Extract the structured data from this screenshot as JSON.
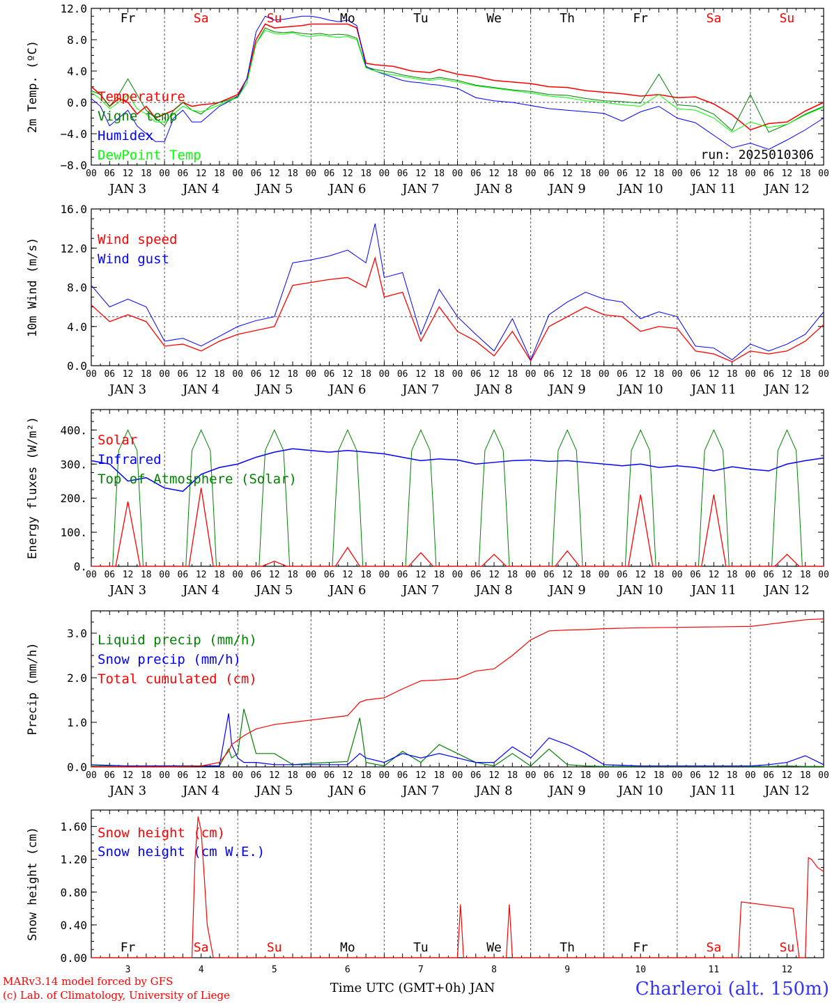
{
  "x_ticks": [
    "00",
    "06",
    "12",
    "18",
    "00",
    "06",
    "12",
    "18",
    "00",
    "06",
    "12",
    "18",
    "00",
    "06",
    "12",
    "18",
    "00",
    "06",
    "12",
    "18",
    "00",
    "06",
    "12",
    "18",
    "00",
    "06",
    "12",
    "18",
    "00",
    "06",
    "12",
    "18",
    "00",
    "06",
    "12",
    "18",
    "00",
    "06",
    "12",
    "18",
    "00"
  ],
  "date_labels": [
    "JAN  3",
    "JAN  4",
    "JAN  5",
    "JAN  6",
    "JAN  7",
    "JAN  8",
    "JAN  9",
    "JAN 10",
    "JAN 11",
    "JAN 12"
  ],
  "day_labels": [
    {
      "text": "Fr",
      "color": "#000000"
    },
    {
      "text": "Sa",
      "color": "#ff0000"
    },
    {
      "text": "Su",
      "color": "#ff0000"
    },
    {
      "text": "Mo",
      "color": "#000000"
    },
    {
      "text": "Tu",
      "color": "#000000"
    },
    {
      "text": "We",
      "color": "#000000"
    },
    {
      "text": "Th",
      "color": "#000000"
    },
    {
      "text": "Fr",
      "color": "#000000"
    },
    {
      "text": "Sa",
      "color": "#ff0000"
    },
    {
      "text": "Su",
      "color": "#ff0000"
    }
  ],
  "bottom_day_numbers": [
    "3",
    "4",
    "5",
    "6",
    "7",
    "8",
    "9",
    "10",
    "11",
    "12"
  ],
  "footer": {
    "model": "MARv3.14 model forced by GFS",
    "credit": "(c) Lab. of Climatology, University of Liege",
    "xlabel": "Time UTC (GMT+0h) JAN",
    "station": "Charleroi (alt. 150m)"
  },
  "chart_data": [
    {
      "type": "line",
      "ylabel": "2m Temp. (ºC)",
      "ylim": [
        -8,
        12
      ],
      "yticks": [
        "−8.0",
        "−4.0",
        "0.0",
        "4.0",
        "8.0",
        "12.0"
      ],
      "ytick_values": [
        -8,
        -4,
        0,
        4,
        8,
        12
      ],
      "ref_line": 0,
      "annotation": "run: 2025010306",
      "x_hours": [
        0,
        3,
        6,
        9,
        12,
        15,
        18,
        21,
        24,
        27,
        30,
        33,
        36,
        39,
        42,
        45,
        48,
        51,
        54,
        57,
        60,
        63,
        66,
        69,
        72,
        75,
        78,
        81,
        84,
        87,
        90,
        93,
        96,
        99,
        102,
        105,
        108,
        111,
        114,
        117,
        120,
        126,
        132,
        138,
        144,
        150,
        156,
        162,
        168,
        174,
        180,
        186,
        192,
        198,
        204,
        210,
        216,
        222,
        228,
        234,
        240
      ],
      "series": [
        {
          "name": "Temperature",
          "color": "#ff0000",
          "width": 1.6,
          "y": [
            2,
            1,
            -0.5,
            0.5,
            0,
            -1.5,
            -0.5,
            -2,
            -1.5,
            -1,
            0,
            -0.5,
            -0.3,
            -0.2,
            0,
            0.5,
            1,
            3,
            8,
            10,
            9.5,
            9.6,
            9.7,
            9.8,
            10,
            10,
            10,
            10,
            10,
            9.5,
            5,
            4.8,
            4.7,
            4.6,
            4.3,
            4,
            3.9,
            3.8,
            4.2,
            3.9,
            3.6,
            3.3,
            2.8,
            2.6,
            2.4,
            2,
            1.9,
            1.5,
            1.3,
            1.1,
            0.8,
            1,
            0.6,
            0.7,
            -0.2,
            -1.6,
            -3.5,
            -2.7,
            -2.5,
            -1.1,
            0
          ]
        },
        {
          "name": "Vigne temp",
          "color": "#008000",
          "width": 1.0,
          "y": [
            1.5,
            1,
            -0.5,
            1,
            3,
            1,
            -1,
            -2,
            -3,
            -1,
            0,
            -1,
            -1.5,
            -0.5,
            0,
            0.3,
            0.8,
            2.5,
            7.5,
            9.5,
            9,
            8.9,
            9,
            8.8,
            8.7,
            8.8,
            8.6,
            8.7,
            8.6,
            8.2,
            4.5,
            4.2,
            4,
            3.8,
            3.5,
            3.3,
            3.1,
            3,
            3.2,
            3,
            2.8,
            2.2,
            1.9,
            1.6,
            1.4,
            1,
            0.9,
            0.5,
            0.2,
            0.1,
            -0.1,
            3.6,
            -0.3,
            -0.5,
            -1.5,
            -3.6,
            1,
            -3.8,
            -2.8,
            -1.5,
            -0.5
          ]
        },
        {
          "name": "Humidex",
          "color": "#0000ff",
          "width": 1.0,
          "y": [
            0.5,
            -0.5,
            -3,
            -2,
            -1,
            -3,
            -4,
            -5,
            -5,
            -2,
            -1,
            -2.5,
            -2.5,
            -1.5,
            -0.5,
            0.1,
            0.7,
            3,
            9,
            11,
            10.5,
            10.6,
            10.8,
            11,
            11,
            10.8,
            10.5,
            10.3,
            10.5,
            9.8,
            4.6,
            4,
            3.6,
            3.2,
            2.8,
            2.6,
            2.5,
            2.3,
            2.2,
            2,
            1.8,
            0.6,
            0.2,
            0,
            -0.4,
            -0.8,
            -1,
            -1.2,
            -1.4,
            -2.4,
            -1.2,
            -0.5,
            -2,
            -2.6,
            -4.2,
            -5.8,
            -5.2,
            -6,
            -4.8,
            -3.5,
            -2
          ]
        },
        {
          "name": "DewPoint Temp",
          "color": "#00ff00",
          "width": 1.0,
          "y": [
            1.3,
            0.4,
            -0.8,
            0,
            1,
            -0.8,
            -1.5,
            -2.5,
            -2.5,
            -1.5,
            -0.5,
            -1,
            -1.2,
            -0.8,
            -0.3,
            0.2,
            0.6,
            2.5,
            7.5,
            9.2,
            8.8,
            8.7,
            8.9,
            8.5,
            8.4,
            8.6,
            8.4,
            8.3,
            8.4,
            8,
            4.4,
            4,
            3.7,
            3.5,
            3.3,
            3.1,
            2.9,
            2.8,
            3,
            2.8,
            2.6,
            2.1,
            1.8,
            1.5,
            1.2,
            0.8,
            0.6,
            0.2,
            0,
            -0.3,
            -0.5,
            1,
            -0.8,
            -1,
            -2,
            -3.8,
            -2.5,
            -3.2,
            -2.8,
            -1.6,
            -0.6
          ]
        }
      ]
    },
    {
      "type": "line",
      "ylabel": "10m Wind (m/s)",
      "ylim": [
        0,
        16
      ],
      "yticks": [
        "0.0",
        "4.0",
        "8.0",
        "12.0",
        "16.0"
      ],
      "ytick_values": [
        0,
        4,
        8,
        12,
        16
      ],
      "ref_line": 5,
      "x_hours": [
        0,
        6,
        12,
        18,
        24,
        30,
        36,
        42,
        48,
        54,
        60,
        66,
        72,
        78,
        84,
        90,
        93,
        96,
        102,
        108,
        114,
        120,
        126,
        132,
        138,
        144,
        150,
        156,
        162,
        168,
        174,
        180,
        186,
        192,
        198,
        204,
        210,
        216,
        222,
        228,
        234,
        240
      ],
      "series": [
        {
          "name": "Wind speed",
          "color": "#ff0000",
          "width": 1.3,
          "y": [
            6.2,
            4.5,
            5.2,
            4.5,
            2,
            2.2,
            1.5,
            2.5,
            3.2,
            3.6,
            4,
            8.2,
            8.5,
            8.8,
            9,
            8,
            11,
            7,
            7.5,
            2.5,
            6,
            3.5,
            2.5,
            1,
            3.5,
            0.5,
            4,
            5,
            6,
            5.2,
            5,
            3.5,
            4,
            3.8,
            1.5,
            1.2,
            0.4,
            1.5,
            1.2,
            1.5,
            2.5,
            4.2
          ]
        },
        {
          "name": "Wind gust",
          "color": "#0000ff",
          "width": 1.0,
          "y": [
            8.2,
            6,
            6.8,
            6,
            2.5,
            2.8,
            2,
            3,
            4,
            4.6,
            5,
            10.5,
            10.8,
            11.2,
            11.8,
            10.5,
            14.5,
            9,
            9.5,
            3.2,
            7.8,
            5,
            3.2,
            1.5,
            4.8,
            0.6,
            5.2,
            6.5,
            7.5,
            6.8,
            6.5,
            4.8,
            5.5,
            5,
            2,
            1.8,
            0.6,
            2.2,
            1.5,
            2.2,
            3.2,
            5.5
          ]
        }
      ]
    },
    {
      "type": "line",
      "ylabel": "Energy fluxes (W/m²)",
      "ylim": [
        0,
        460
      ],
      "yticks": [
        "0.",
        "100.",
        "200.",
        "300.",
        "400."
      ],
      "ytick_values": [
        0,
        100,
        200,
        300,
        400
      ],
      "solar_peaks": [
        190,
        230,
        15,
        55,
        40,
        35,
        45,
        210,
        210,
        35
      ],
      "toa_peak": 400,
      "infrared": {
        "x_hours": [
          0,
          6,
          12,
          18,
          24,
          30,
          36,
          42,
          48,
          54,
          60,
          66,
          72,
          78,
          84,
          90,
          96,
          102,
          108,
          114,
          120,
          126,
          132,
          138,
          144,
          150,
          156,
          162,
          168,
          174,
          180,
          186,
          192,
          198,
          204,
          210,
          216,
          222,
          228,
          234,
          240
        ],
        "y": [
          310,
          300,
          250,
          260,
          230,
          220,
          270,
          290,
          300,
          320,
          335,
          345,
          340,
          335,
          340,
          335,
          330,
          320,
          310,
          315,
          312,
          300,
          305,
          310,
          312,
          308,
          310,
          305,
          300,
          295,
          300,
          290,
          295,
          290,
          280,
          292,
          285,
          280,
          300,
          310,
          318
        ]
      },
      "series": [
        {
          "name": "Solar",
          "color": "#ff0000"
        },
        {
          "name": "Infrared",
          "color": "#0000ff"
        },
        {
          "name": "Top of Atmosphere (Solar)",
          "color": "#008000"
        }
      ]
    },
    {
      "type": "line",
      "ylabel": "Precip (mm/h)",
      "ylim": [
        0,
        3.5
      ],
      "yticks": [
        "0.0",
        "1.0",
        "2.0",
        "3.0"
      ],
      "ytick_values": [
        0,
        1,
        2,
        3
      ],
      "x_hours": [
        0,
        12,
        24,
        36,
        42,
        45,
        46,
        48,
        50,
        54,
        60,
        66,
        72,
        78,
        84,
        88,
        90,
        96,
        102,
        108,
        114,
        120,
        126,
        132,
        138,
        144,
        150,
        156,
        162,
        168,
        180,
        192,
        204,
        216,
        222,
        228,
        234,
        240
      ],
      "series": [
        {
          "name": "Liquid precip (mm/h)",
          "color": "#008000",
          "y": [
            0.02,
            0.02,
            0.02,
            0.02,
            0.02,
            0.4,
            0.2,
            0.3,
            1.3,
            0.3,
            0.3,
            0.05,
            0.08,
            0.1,
            0.12,
            1.1,
            0.1,
            0.02,
            0.35,
            0.1,
            0.5,
            0.3,
            0.1,
            0.02,
            0.3,
            0.02,
            0.4,
            0.05,
            0.02,
            0.01,
            0.01,
            0.01,
            0.01,
            0.01,
            0.01,
            0.02,
            0.01,
            0.01
          ]
        },
        {
          "name": "Snow precip (mm/h)",
          "color": "#0000ff",
          "y": [
            0.05,
            0.02,
            0.02,
            0.02,
            0.02,
            1.2,
            0.5,
            0.2,
            0.1,
            0.1,
            0.05,
            0.05,
            0.05,
            0.05,
            0.05,
            0.3,
            0.2,
            0.1,
            0.3,
            0.2,
            0.3,
            0.2,
            0.1,
            0.1,
            0.45,
            0.2,
            0.65,
            0.5,
            0.3,
            0.05,
            0.02,
            0.02,
            0.02,
            0.02,
            0.05,
            0.1,
            0.25,
            0.05
          ]
        },
        {
          "name": "Total cumulated (cm)",
          "color": "#ff0000",
          "y": [
            0,
            0,
            0,
            0.02,
            0.1,
            0.35,
            0.5,
            0.6,
            0.7,
            0.85,
            0.95,
            1.0,
            1.05,
            1.1,
            1.15,
            1.45,
            1.5,
            1.55,
            1.75,
            1.93,
            1.95,
            1.98,
            2.15,
            2.2,
            2.5,
            2.85,
            3.05,
            3.07,
            3.08,
            3.1,
            3.12,
            3.13,
            3.14,
            3.15,
            3.2,
            3.25,
            3.3,
            3.32
          ]
        }
      ]
    },
    {
      "type": "line",
      "ylabel": "Snow height (cm)",
      "ylim": [
        0,
        1.8
      ],
      "yticks": [
        "0.00",
        "0.40",
        "0.80",
        "1.20",
        "1.60"
      ],
      "ytick_values": [
        0,
        0.4,
        0.8,
        1.2,
        1.6
      ],
      "x_hours": [
        0,
        33,
        34,
        35,
        36,
        37,
        38,
        40,
        41,
        42,
        120,
        121,
        122,
        123,
        136,
        137,
        138,
        139,
        212,
        213,
        230,
        232,
        234,
        235,
        236,
        237,
        238,
        240
      ],
      "series": [
        {
          "name": "Snow height (cm)",
          "color": "#ff0000",
          "y": [
            0,
            0,
            1.2,
            1.72,
            1.55,
            1.0,
            0.4,
            0,
            0,
            0,
            0,
            0.65,
            0,
            0,
            0,
            0.65,
            0,
            0,
            0,
            0.68,
            0.6,
            0,
            0,
            1.22,
            1.2,
            1.15,
            1.1,
            1.05
          ]
        },
        {
          "name": "Snow height (cm W.E.)",
          "color": "#0000ff",
          "y": []
        }
      ]
    }
  ]
}
